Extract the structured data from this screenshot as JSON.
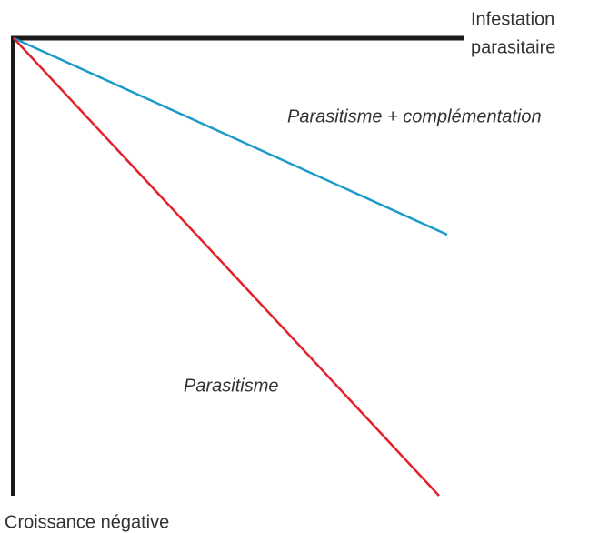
{
  "axes": {
    "x_label_line1": "Infestation",
    "x_label_line2": "parasitaire",
    "y_label": "Croissance négative"
  },
  "curves": [
    {
      "label": "Parasitisme + complémentation",
      "color": "#1a9bc9"
    },
    {
      "label": "Parasitisme",
      "color": "#e2222a"
    }
  ]
}
